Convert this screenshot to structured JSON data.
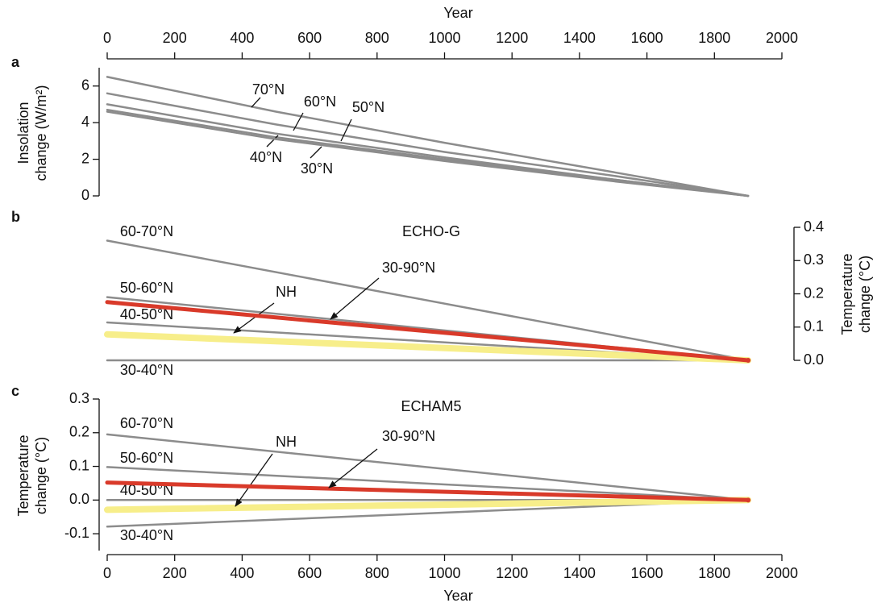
{
  "chart_data": [
    {
      "type": "line",
      "panel": "a",
      "xlabel": "Year",
      "ylabel": [
        "Insolation",
        "change (W/m²)"
      ],
      "x": [
        0,
        500,
        1000,
        1500,
        1900
      ],
      "xlim": [
        0,
        2000
      ],
      "xticks": [
        0,
        200,
        400,
        600,
        800,
        1000,
        1200,
        1400,
        1600,
        1800,
        2000
      ],
      "ylim": [
        0,
        7
      ],
      "yticks": [
        0,
        2,
        4,
        6
      ],
      "series": [
        {
          "name": "70°N",
          "color": "#8c8c8c",
          "values": [
            6.5,
            4.6,
            2.9,
            1.3,
            0
          ]
        },
        {
          "name": "60°N",
          "color": "#8c8c8c",
          "values": [
            5.6,
            3.9,
            2.4,
            1.1,
            0
          ]
        },
        {
          "name": "50°N",
          "color": "#8c8c8c",
          "values": [
            5.0,
            3.4,
            2.1,
            0.9,
            0
          ]
        },
        {
          "name": "40°N",
          "color": "#8c8c8c",
          "values": [
            4.7,
            3.2,
            2.0,
            0.9,
            0
          ]
        },
        {
          "name": "30°N",
          "color": "#8c8c8c",
          "values": [
            4.6,
            3.1,
            1.9,
            0.8,
            0
          ]
        }
      ]
    },
    {
      "type": "line",
      "panel": "b",
      "title": "ECHO-G",
      "ylabel": [
        "Temperature",
        "change (°C)"
      ],
      "x": [
        0,
        1900
      ],
      "xlim": [
        0,
        2000
      ],
      "ylim": [
        0,
        0.4
      ],
      "yticks": [
        {
          "value": 0,
          "label": "0.0"
        },
        0.1,
        0.2,
        0.3,
        0.4
      ],
      "series": [
        {
          "name": "60-70°N",
          "color": "#8c8c8c",
          "values": [
            0.36,
            0
          ]
        },
        {
          "name": "50-60°N",
          "color": "#8c8c8c",
          "values": [
            0.19,
            0
          ]
        },
        {
          "name": "40-50°N",
          "color": "#8c8c8c",
          "values": [
            0.114,
            0
          ]
        },
        {
          "name": "30-40°N",
          "color": "#8c8c8c",
          "values": [
            0.0,
            0
          ]
        },
        {
          "name": "NH",
          "color": "#f7ee8a",
          "values": [
            0.078,
            0
          ]
        },
        {
          "name": "30-90°N",
          "color": "#d93a2a",
          "values": [
            0.175,
            0
          ]
        }
      ]
    },
    {
      "type": "line",
      "panel": "c",
      "title": "ECHAM5",
      "xlabel": "Year",
      "ylabel": [
        "Temperature",
        "change (°C)"
      ],
      "x": [
        0,
        1900
      ],
      "xlim": [
        0,
        2000
      ],
      "xticks": [
        0,
        200,
        400,
        600,
        800,
        1000,
        1200,
        1400,
        1600,
        1800,
        2000
      ],
      "ylim": [
        -0.15,
        0.3
      ],
      "yticks": [
        -0.1,
        {
          "value": 0,
          "label": "0.0"
        },
        0.1,
        0.2,
        0.3
      ],
      "series": [
        {
          "name": "60-70°N",
          "color": "#8c8c8c",
          "values": [
            0.195,
            0
          ]
        },
        {
          "name": "50-60°N",
          "color": "#8c8c8c",
          "values": [
            0.098,
            0
          ]
        },
        {
          "name": "40-50°N",
          "color": "#8c8c8c",
          "values": [
            0,
            0
          ]
        },
        {
          "name": "30-40°N",
          "color": "#8c8c8c",
          "values": [
            -0.079,
            0
          ]
        },
        {
          "name": "NH",
          "color": "#f7ee8a",
          "values": [
            -0.029,
            0
          ]
        },
        {
          "name": "30-90°N",
          "color": "#d93a2a",
          "values": [
            0.052,
            0
          ]
        }
      ]
    }
  ]
}
